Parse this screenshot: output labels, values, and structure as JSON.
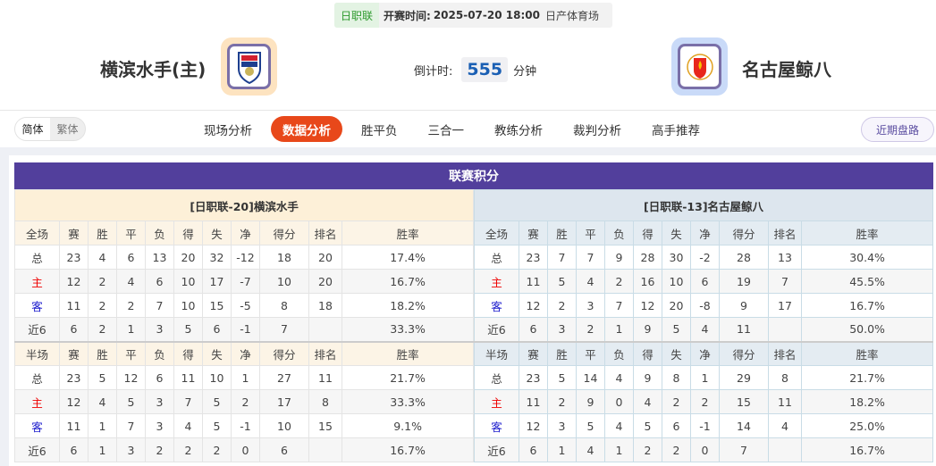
{
  "match_info": {
    "league": "日职联",
    "time_label": "开赛时间:",
    "time": "2025-07-20 18:00",
    "venue": "日产体育场"
  },
  "home": {
    "name": "横滨水手(主)",
    "logo": "yokohama-marinos-crest",
    "logo_bg": "#fde3c0"
  },
  "away": {
    "name": "名古屋鲸八",
    "logo": "nagoya-grampus-crest",
    "logo_bg": "#c9daf8"
  },
  "countdown": {
    "label": "倒计时:",
    "value": "555",
    "unit": "分钟"
  },
  "lang": {
    "simplified": "简体",
    "traditional": "繁体"
  },
  "tabs": [
    {
      "label": "现场分析"
    },
    {
      "label": "数据分析",
      "active": true
    },
    {
      "label": "胜平负"
    },
    {
      "label": "三合一"
    },
    {
      "label": "教练分析"
    },
    {
      "label": "裁判分析"
    },
    {
      "label": "高手推荐"
    }
  ],
  "recent_button": "近期盘路",
  "section_title": "联赛积分",
  "colors": {
    "accent": "#e8481a",
    "title_bar": "#523f9c",
    "home_label": "#ee0000",
    "away_label": "#1a1acc"
  },
  "tables": [
    {
      "team_header": "[日职联-20]横滨水手",
      "full": {
        "headers": [
          "全场",
          "赛",
          "胜",
          "平",
          "负",
          "得",
          "失",
          "净",
          "得分",
          "排名",
          "胜率"
        ],
        "rows": [
          [
            "总",
            "23",
            "4",
            "6",
            "13",
            "20",
            "32",
            "-12",
            "18",
            "20",
            "17.4%"
          ],
          [
            "主",
            "12",
            "2",
            "4",
            "6",
            "10",
            "17",
            "-7",
            "10",
            "20",
            "16.7%"
          ],
          [
            "客",
            "11",
            "2",
            "2",
            "7",
            "10",
            "15",
            "-5",
            "8",
            "18",
            "18.2%"
          ],
          [
            "近6",
            "6",
            "2",
            "1",
            "3",
            "5",
            "6",
            "-1",
            "7",
            "",
            "33.3%"
          ]
        ]
      },
      "half": {
        "headers": [
          "半场",
          "赛",
          "胜",
          "平",
          "负",
          "得",
          "失",
          "净",
          "得分",
          "排名",
          "胜率"
        ],
        "rows": [
          [
            "总",
            "23",
            "5",
            "12",
            "6",
            "11",
            "10",
            "1",
            "27",
            "11",
            "21.7%"
          ],
          [
            "主",
            "12",
            "4",
            "5",
            "3",
            "7",
            "5",
            "2",
            "17",
            "8",
            "33.3%"
          ],
          [
            "客",
            "11",
            "1",
            "7",
            "3",
            "4",
            "5",
            "-1",
            "10",
            "15",
            "9.1%"
          ],
          [
            "近6",
            "6",
            "1",
            "3",
            "2",
            "2",
            "2",
            "0",
            "6",
            "",
            "16.7%"
          ]
        ]
      }
    },
    {
      "team_header": "[日职联-13]名古屋鲸八",
      "full": {
        "headers": [
          "全场",
          "赛",
          "胜",
          "平",
          "负",
          "得",
          "失",
          "净",
          "得分",
          "排名",
          "胜率"
        ],
        "rows": [
          [
            "总",
            "23",
            "7",
            "7",
            "9",
            "28",
            "30",
            "-2",
            "28",
            "13",
            "30.4%"
          ],
          [
            "主",
            "11",
            "5",
            "4",
            "2",
            "16",
            "10",
            "6",
            "19",
            "7",
            "45.5%"
          ],
          [
            "客",
            "12",
            "2",
            "3",
            "7",
            "12",
            "20",
            "-8",
            "9",
            "17",
            "16.7%"
          ],
          [
            "近6",
            "6",
            "3",
            "2",
            "1",
            "9",
            "5",
            "4",
            "11",
            "",
            "50.0%"
          ]
        ]
      },
      "half": {
        "headers": [
          "半场",
          "赛",
          "胜",
          "平",
          "负",
          "得",
          "失",
          "净",
          "得分",
          "排名",
          "胜率"
        ],
        "rows": [
          [
            "总",
            "23",
            "5",
            "14",
            "4",
            "9",
            "8",
            "1",
            "29",
            "8",
            "21.7%"
          ],
          [
            "主",
            "11",
            "2",
            "9",
            "0",
            "4",
            "2",
            "2",
            "15",
            "11",
            "18.2%"
          ],
          [
            "客",
            "12",
            "3",
            "5",
            "4",
            "5",
            "6",
            "-1",
            "14",
            "4",
            "25.0%"
          ],
          [
            "近6",
            "6",
            "1",
            "4",
            "1",
            "2",
            "2",
            "0",
            "7",
            "",
            "16.7%"
          ]
        ]
      }
    }
  ]
}
